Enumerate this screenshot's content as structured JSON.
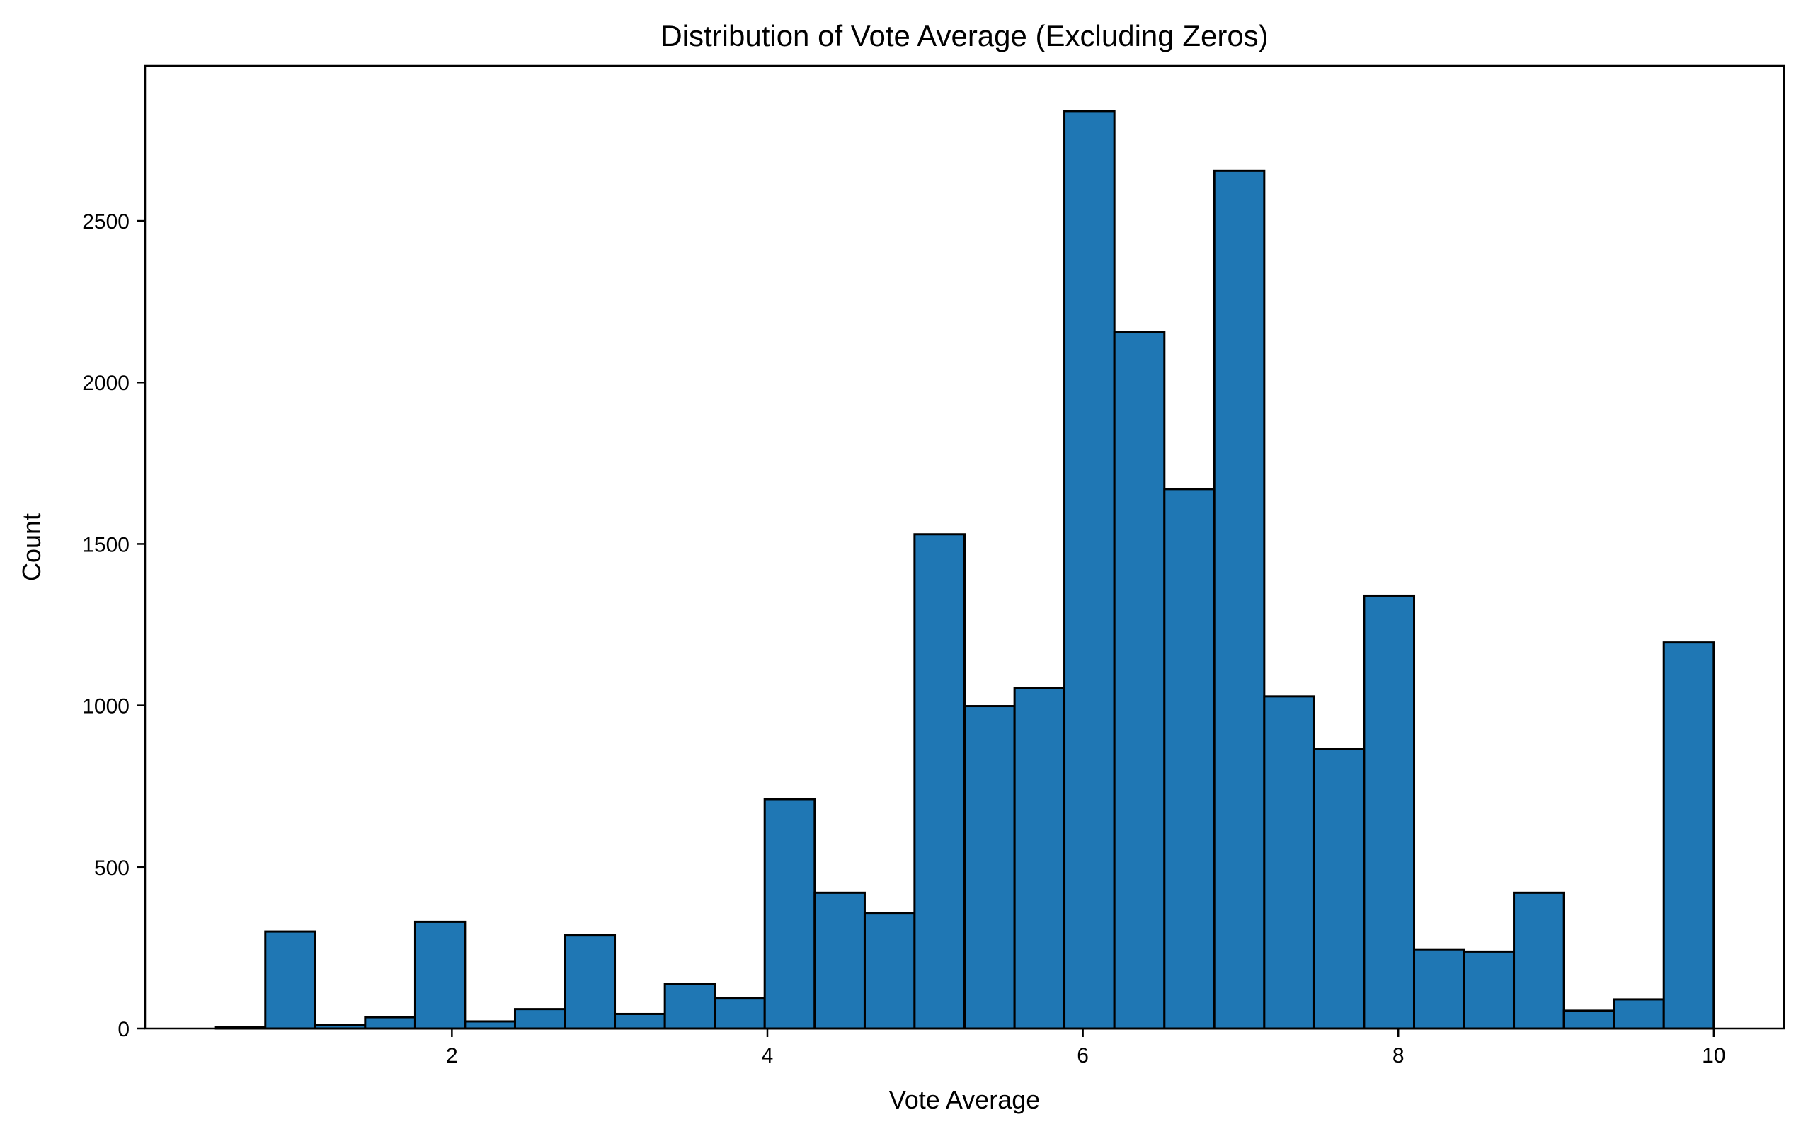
{
  "chart_data": {
    "type": "bar",
    "title": "Distribution of Vote Average (Excluding Zeros)",
    "xlabel": "Vote Average",
    "ylabel": "Count",
    "bar_color": "#1f77b4",
    "edge_color": "#000000",
    "xlim": [
      0.055,
      10.445
    ],
    "ylim": [
      0,
      2980
    ],
    "xticks": [
      2,
      4,
      6,
      8,
      10
    ],
    "yticks": [
      0,
      500,
      1000,
      1500,
      2000,
      2500
    ],
    "bins": [
      {
        "x0": 0.5,
        "x1": 0.817,
        "count": 5
      },
      {
        "x0": 0.817,
        "x1": 1.133,
        "count": 300
      },
      {
        "x0": 1.133,
        "x1": 1.45,
        "count": 10
      },
      {
        "x0": 1.45,
        "x1": 1.767,
        "count": 35
      },
      {
        "x0": 1.767,
        "x1": 2.083,
        "count": 330
      },
      {
        "x0": 2.083,
        "x1": 2.4,
        "count": 22
      },
      {
        "x0": 2.4,
        "x1": 2.717,
        "count": 60
      },
      {
        "x0": 2.717,
        "x1": 3.033,
        "count": 290
      },
      {
        "x0": 3.033,
        "x1": 3.35,
        "count": 45
      },
      {
        "x0": 3.35,
        "x1": 3.667,
        "count": 138
      },
      {
        "x0": 3.667,
        "x1": 3.983,
        "count": 95
      },
      {
        "x0": 3.983,
        "x1": 4.3,
        "count": 710
      },
      {
        "x0": 4.3,
        "x1": 4.617,
        "count": 420
      },
      {
        "x0": 4.617,
        "x1": 4.933,
        "count": 358
      },
      {
        "x0": 4.933,
        "x1": 5.25,
        "count": 1530
      },
      {
        "x0": 5.25,
        "x1": 5.567,
        "count": 998
      },
      {
        "x0": 5.567,
        "x1": 5.883,
        "count": 1055
      },
      {
        "x0": 5.883,
        "x1": 6.2,
        "count": 2840
      },
      {
        "x0": 6.2,
        "x1": 6.517,
        "count": 2155
      },
      {
        "x0": 6.517,
        "x1": 6.833,
        "count": 1670
      },
      {
        "x0": 6.833,
        "x1": 7.15,
        "count": 2655
      },
      {
        "x0": 7.15,
        "x1": 7.467,
        "count": 1028
      },
      {
        "x0": 7.467,
        "x1": 7.783,
        "count": 865
      },
      {
        "x0": 7.783,
        "x1": 8.1,
        "count": 1340
      },
      {
        "x0": 8.1,
        "x1": 8.417,
        "count": 245
      },
      {
        "x0": 8.417,
        "x1": 8.733,
        "count": 238
      },
      {
        "x0": 8.733,
        "x1": 9.05,
        "count": 420
      },
      {
        "x0": 9.05,
        "x1": 9.367,
        "count": 55
      },
      {
        "x0": 9.367,
        "x1": 9.683,
        "count": 90
      },
      {
        "x0": 9.683,
        "x1": 10.0,
        "count": 1195
      }
    ]
  }
}
